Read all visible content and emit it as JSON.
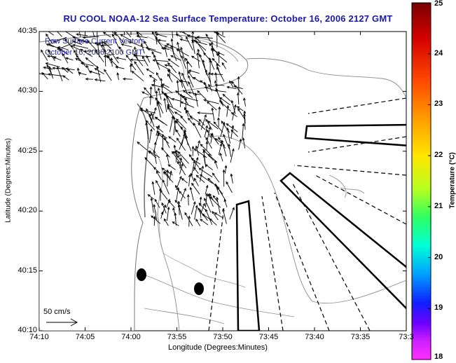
{
  "title": "RU COOL  NOAA-12  Sea Surface Temperature:  October 16, 2006 2127 GMT",
  "overlay": {
    "line1": "Raw Surface Current Vectors",
    "line2": "October 16, 2006 2100 GMT"
  },
  "axes": {
    "xlabel": "Longitude (Degrees:Minutes)",
    "ylabel": "Latitude (Degrees:Minutes)",
    "xticks": [
      "74:10",
      "74:05",
      "74:00",
      "73:55",
      "73:50",
      "73:45",
      "73:40",
      "73:35",
      "73:3"
    ],
    "yticks": [
      "40:35",
      "40:30",
      "40:25",
      "40:20",
      "40:15",
      "40:10"
    ]
  },
  "scale_label": "50 cm/s",
  "colorbar": {
    "label": "Temperature (°C)",
    "ticks": [
      "25",
      "24",
      "23",
      "22",
      "21",
      "20",
      "19",
      "18"
    ],
    "min": 18,
    "max": 25
  },
  "colors": {
    "title": "#1a1aa0",
    "contour": "#8c8c8c",
    "vectors": "#000000"
  }
}
